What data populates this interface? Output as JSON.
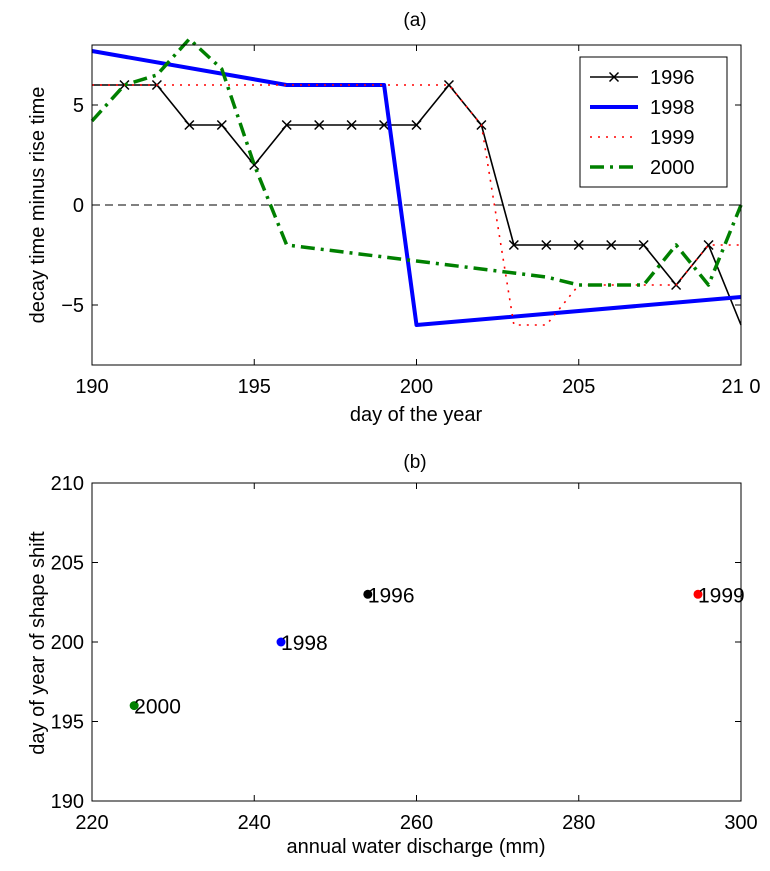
{
  "chart_data": [
    {
      "type": "line",
      "title": "(a)",
      "xlabel": "day of the year",
      "ylabel": "decay time minus rise time",
      "xlim": [
        190,
        210
      ],
      "ylim": [
        -8,
        8
      ],
      "xticks": [
        190,
        195,
        200,
        205,
        210
      ],
      "xtick_labels": [
        "190",
        "195",
        "200",
        "205",
        "21 0"
      ],
      "yticks": [
        -5,
        0,
        5
      ],
      "ytick_labels": [
        "−5",
        "0",
        "5"
      ],
      "zero_line": true,
      "grid": false,
      "legend_position": "top-right",
      "series": [
        {
          "name": "1996",
          "color": "#000000",
          "style": "solid-x-markers",
          "x": [
            190,
            191,
            192,
            193,
            194,
            195,
            196,
            197,
            198,
            199,
            200,
            201,
            202,
            203,
            204,
            205,
            206,
            207,
            208,
            209,
            210
          ],
          "y": [
            6,
            6,
            6,
            4,
            4,
            2,
            4,
            4,
            4,
            4,
            4,
            6,
            4,
            -2,
            -2,
            -2,
            -2,
            -2,
            -4,
            -2,
            -6
          ]
        },
        {
          "name": "1998",
          "color": "#0000ff",
          "style": "solid-thick",
          "x": [
            190,
            196,
            199,
            200,
            210
          ],
          "y": [
            7.7,
            6,
            6,
            -6,
            -4.6
          ]
        },
        {
          "name": "1999",
          "color": "#ff0000",
          "style": "dotted",
          "x": [
            190,
            201,
            202,
            203,
            204,
            205,
            206,
            207,
            208,
            209,
            210
          ],
          "y": [
            6,
            6,
            4,
            -6,
            -6,
            -4,
            -4,
            -4,
            -4,
            -2,
            -2
          ]
        },
        {
          "name": "2000",
          "color": "#008000",
          "style": "dashdot-thick",
          "x": [
            190,
            191,
            192,
            193,
            194,
            195,
            196,
            197,
            198,
            199,
            200,
            201,
            202,
            203,
            204,
            205,
            206,
            207,
            208,
            209,
            210
          ],
          "y": [
            4.2,
            6,
            6.5,
            8.3,
            6.8,
            2,
            -2,
            -2.2,
            -2.4,
            -2.6,
            -2.8,
            -3,
            -3.2,
            -3.4,
            -3.6,
            -4,
            -4,
            -4,
            -2,
            -4,
            0
          ]
        }
      ]
    },
    {
      "type": "scatter",
      "title": "(b)",
      "xlabel": "annual water discharge (mm)",
      "ylabel": "day of year of shape shift",
      "xlim": [
        220,
        300
      ],
      "ylim": [
        190,
        210
      ],
      "xticks": [
        220,
        240,
        260,
        280,
        300
      ],
      "yticks": [
        190,
        195,
        200,
        205,
        210
      ],
      "grid": false,
      "points": [
        {
          "label": "1996",
          "x": 254,
          "y": 203,
          "color": "#000000"
        },
        {
          "label": "1998",
          "x": 243.3,
          "y": 200,
          "color": "#0000ff"
        },
        {
          "label": "1999",
          "x": 294.7,
          "y": 203,
          "color": "#ff0000"
        },
        {
          "label": "2000",
          "x": 225.2,
          "y": 196,
          "color": "#008000"
        }
      ]
    }
  ]
}
